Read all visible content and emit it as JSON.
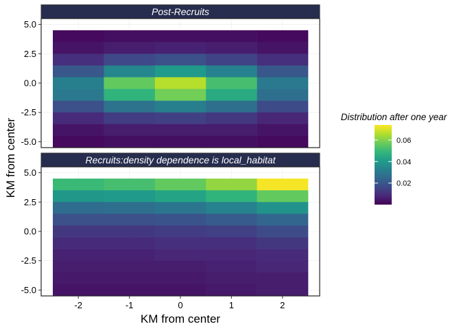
{
  "chart_data": {
    "type": "heatmap",
    "xlabel": "KM from center",
    "ylabel": "KM from center",
    "x": [
      -2,
      -1,
      0,
      1,
      2
    ],
    "x_tick_labels": [
      "-2",
      "-1",
      "0",
      "1",
      "2"
    ],
    "y": [
      -5,
      -4,
      -3,
      -2,
      -1,
      0,
      1,
      2,
      3,
      4
    ],
    "y_tick_labels": [
      "-5.0",
      "-2.5",
      "0.0",
      "2.5",
      "5.0"
    ],
    "y_ticks": [
      -5,
      -2.5,
      0,
      2.5,
      5
    ],
    "ylim": [
      -5.5,
      5.5
    ],
    "facets": [
      {
        "title": "Post-Recruits",
        "z_rows_top_to_bottom": [
          [
            0.002,
            0.003,
            0.003,
            0.003,
            0.002
          ],
          [
            0.004,
            0.006,
            0.007,
            0.006,
            0.004
          ],
          [
            0.01,
            0.016,
            0.018,
            0.015,
            0.01
          ],
          [
            0.02,
            0.034,
            0.04,
            0.033,
            0.02
          ],
          [
            0.032,
            0.056,
            0.066,
            0.052,
            0.03
          ],
          [
            0.03,
            0.048,
            0.058,
            0.045,
            0.027
          ],
          [
            0.018,
            0.028,
            0.032,
            0.027,
            0.017
          ],
          [
            0.009,
            0.013,
            0.014,
            0.012,
            0.008
          ],
          [
            0.004,
            0.006,
            0.006,
            0.006,
            0.004
          ],
          [
            0.002,
            0.003,
            0.003,
            0.003,
            0.002
          ]
        ]
      },
      {
        "title": "Recruits:density dependence is local_habitat",
        "z_rows_top_to_bottom": [
          [
            0.05,
            0.052,
            0.056,
            0.062,
            0.073
          ],
          [
            0.039,
            0.04,
            0.043,
            0.048,
            0.056
          ],
          [
            0.026,
            0.027,
            0.029,
            0.033,
            0.038
          ],
          [
            0.018,
            0.018,
            0.019,
            0.021,
            0.024
          ],
          [
            0.012,
            0.012,
            0.013,
            0.014,
            0.017
          ],
          [
            0.009,
            0.009,
            0.01,
            0.01,
            0.012
          ],
          [
            0.007,
            0.007,
            0.008,
            0.008,
            0.009
          ],
          [
            0.006,
            0.006,
            0.006,
            0.007,
            0.008
          ],
          [
            0.005,
            0.005,
            0.005,
            0.006,
            0.006
          ],
          [
            0.004,
            0.004,
            0.004,
            0.005,
            0.006
          ]
        ]
      }
    ],
    "legend": {
      "title": "Distribution after one year",
      "ticks": [
        0.02,
        0.04,
        0.06
      ],
      "tick_labels": [
        "0.02",
        "0.04",
        "0.06"
      ],
      "range": [
        0.0,
        0.074
      ],
      "colormap": [
        "#440154",
        "#482878",
        "#3E4A89",
        "#31688E",
        "#26828E",
        "#1F9E89",
        "#35B779",
        "#6DCD59",
        "#B4DE2C",
        "#FDE725"
      ],
      "placement": "right"
    },
    "strip_color": "#262D4E",
    "grid": true
  }
}
